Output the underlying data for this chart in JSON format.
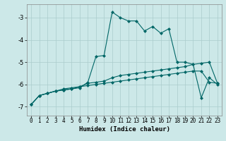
{
  "xlabel": "Humidex (Indice chaleur)",
  "background_color": "#cce8e8",
  "grid_color": "#aacccc",
  "line_color": "#006666",
  "xlim": [
    -0.5,
    23.5
  ],
  "ylim": [
    -7.4,
    -2.4
  ],
  "yticks": [
    -7,
    -6,
    -5,
    -4,
    -3
  ],
  "xticks": [
    0,
    1,
    2,
    3,
    4,
    5,
    6,
    7,
    8,
    9,
    10,
    11,
    12,
    13,
    14,
    15,
    16,
    17,
    18,
    19,
    20,
    21,
    22,
    23
  ],
  "line1_x": [
    0,
    1,
    2,
    3,
    4,
    5,
    6,
    7,
    8,
    9,
    10,
    11,
    12,
    13,
    14,
    15,
    16,
    17,
    18,
    19,
    20,
    21,
    22,
    23
  ],
  "line1_y": [
    -6.9,
    -6.5,
    -6.4,
    -6.3,
    -6.25,
    -6.2,
    -6.1,
    -6.05,
    -6.0,
    -5.95,
    -5.9,
    -5.85,
    -5.8,
    -5.75,
    -5.7,
    -5.65,
    -5.6,
    -5.55,
    -5.5,
    -5.45,
    -5.4,
    -5.4,
    -5.9,
    -5.95
  ],
  "line2_x": [
    0,
    1,
    2,
    3,
    4,
    5,
    6,
    7,
    8,
    9,
    10,
    11,
    12,
    13,
    14,
    15,
    16,
    17,
    18,
    19,
    20,
    21,
    22,
    23
  ],
  "line2_y": [
    -6.9,
    -6.5,
    -6.4,
    -6.3,
    -6.2,
    -6.15,
    -6.1,
    -5.95,
    -5.9,
    -5.85,
    -5.7,
    -5.6,
    -5.55,
    -5.5,
    -5.45,
    -5.4,
    -5.35,
    -5.3,
    -5.25,
    -5.2,
    -5.1,
    -5.05,
    -5.0,
    -5.95
  ],
  "line3_x": [
    0,
    1,
    2,
    3,
    4,
    5,
    6,
    7,
    8,
    9,
    10,
    11,
    12,
    13,
    14,
    15,
    16,
    17,
    18,
    19,
    20,
    21,
    22,
    23
  ],
  "line3_y": [
    -6.9,
    -6.5,
    -6.4,
    -6.3,
    -6.25,
    -6.2,
    -6.15,
    -5.9,
    -4.75,
    -4.7,
    -2.75,
    -3.0,
    -3.15,
    -3.15,
    -3.6,
    -3.4,
    -3.7,
    -3.5,
    -5.0,
    -5.0,
    -5.1,
    -6.6,
    -5.7,
    -6.0
  ],
  "markersize": 2.5,
  "linewidth": 0.8,
  "xlabel_fontsize": 6.5,
  "tick_fontsize": 5.5
}
